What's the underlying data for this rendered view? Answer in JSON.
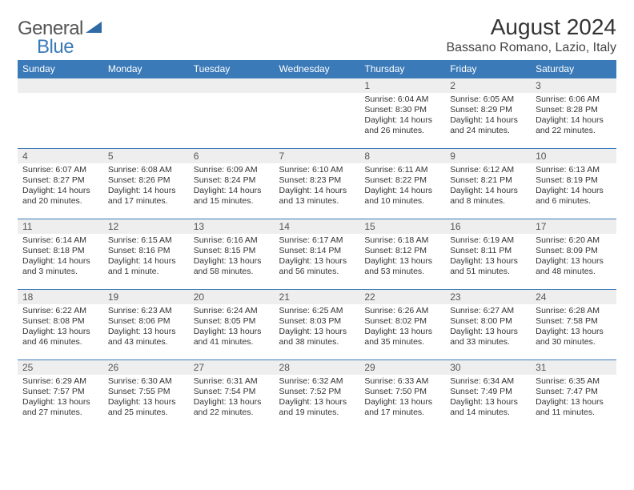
{
  "logo": {
    "general": "General",
    "blue": "Blue"
  },
  "title": "August 2024",
  "location": "Bassano Romano, Lazio, Italy",
  "colors": {
    "header_bg": "#3a7ab8",
    "header_text": "#ffffff",
    "daynum_bg": "#eeeeee",
    "border": "#3a7ab8",
    "text": "#333333"
  },
  "weekdays": [
    "Sunday",
    "Monday",
    "Tuesday",
    "Wednesday",
    "Thursday",
    "Friday",
    "Saturday"
  ],
  "weeks": [
    [
      null,
      null,
      null,
      null,
      {
        "n": "1",
        "sr": "Sunrise: 6:04 AM",
        "ss": "Sunset: 8:30 PM",
        "dl": "Daylight: 14 hours and 26 minutes."
      },
      {
        "n": "2",
        "sr": "Sunrise: 6:05 AM",
        "ss": "Sunset: 8:29 PM",
        "dl": "Daylight: 14 hours and 24 minutes."
      },
      {
        "n": "3",
        "sr": "Sunrise: 6:06 AM",
        "ss": "Sunset: 8:28 PM",
        "dl": "Daylight: 14 hours and 22 minutes."
      }
    ],
    [
      {
        "n": "4",
        "sr": "Sunrise: 6:07 AM",
        "ss": "Sunset: 8:27 PM",
        "dl": "Daylight: 14 hours and 20 minutes."
      },
      {
        "n": "5",
        "sr": "Sunrise: 6:08 AM",
        "ss": "Sunset: 8:26 PM",
        "dl": "Daylight: 14 hours and 17 minutes."
      },
      {
        "n": "6",
        "sr": "Sunrise: 6:09 AM",
        "ss": "Sunset: 8:24 PM",
        "dl": "Daylight: 14 hours and 15 minutes."
      },
      {
        "n": "7",
        "sr": "Sunrise: 6:10 AM",
        "ss": "Sunset: 8:23 PM",
        "dl": "Daylight: 14 hours and 13 minutes."
      },
      {
        "n": "8",
        "sr": "Sunrise: 6:11 AM",
        "ss": "Sunset: 8:22 PM",
        "dl": "Daylight: 14 hours and 10 minutes."
      },
      {
        "n": "9",
        "sr": "Sunrise: 6:12 AM",
        "ss": "Sunset: 8:21 PM",
        "dl": "Daylight: 14 hours and 8 minutes."
      },
      {
        "n": "10",
        "sr": "Sunrise: 6:13 AM",
        "ss": "Sunset: 8:19 PM",
        "dl": "Daylight: 14 hours and 6 minutes."
      }
    ],
    [
      {
        "n": "11",
        "sr": "Sunrise: 6:14 AM",
        "ss": "Sunset: 8:18 PM",
        "dl": "Daylight: 14 hours and 3 minutes."
      },
      {
        "n": "12",
        "sr": "Sunrise: 6:15 AM",
        "ss": "Sunset: 8:16 PM",
        "dl": "Daylight: 14 hours and 1 minute."
      },
      {
        "n": "13",
        "sr": "Sunrise: 6:16 AM",
        "ss": "Sunset: 8:15 PM",
        "dl": "Daylight: 13 hours and 58 minutes."
      },
      {
        "n": "14",
        "sr": "Sunrise: 6:17 AM",
        "ss": "Sunset: 8:14 PM",
        "dl": "Daylight: 13 hours and 56 minutes."
      },
      {
        "n": "15",
        "sr": "Sunrise: 6:18 AM",
        "ss": "Sunset: 8:12 PM",
        "dl": "Daylight: 13 hours and 53 minutes."
      },
      {
        "n": "16",
        "sr": "Sunrise: 6:19 AM",
        "ss": "Sunset: 8:11 PM",
        "dl": "Daylight: 13 hours and 51 minutes."
      },
      {
        "n": "17",
        "sr": "Sunrise: 6:20 AM",
        "ss": "Sunset: 8:09 PM",
        "dl": "Daylight: 13 hours and 48 minutes."
      }
    ],
    [
      {
        "n": "18",
        "sr": "Sunrise: 6:22 AM",
        "ss": "Sunset: 8:08 PM",
        "dl": "Daylight: 13 hours and 46 minutes."
      },
      {
        "n": "19",
        "sr": "Sunrise: 6:23 AM",
        "ss": "Sunset: 8:06 PM",
        "dl": "Daylight: 13 hours and 43 minutes."
      },
      {
        "n": "20",
        "sr": "Sunrise: 6:24 AM",
        "ss": "Sunset: 8:05 PM",
        "dl": "Daylight: 13 hours and 41 minutes."
      },
      {
        "n": "21",
        "sr": "Sunrise: 6:25 AM",
        "ss": "Sunset: 8:03 PM",
        "dl": "Daylight: 13 hours and 38 minutes."
      },
      {
        "n": "22",
        "sr": "Sunrise: 6:26 AM",
        "ss": "Sunset: 8:02 PM",
        "dl": "Daylight: 13 hours and 35 minutes."
      },
      {
        "n": "23",
        "sr": "Sunrise: 6:27 AM",
        "ss": "Sunset: 8:00 PM",
        "dl": "Daylight: 13 hours and 33 minutes."
      },
      {
        "n": "24",
        "sr": "Sunrise: 6:28 AM",
        "ss": "Sunset: 7:58 PM",
        "dl": "Daylight: 13 hours and 30 minutes."
      }
    ],
    [
      {
        "n": "25",
        "sr": "Sunrise: 6:29 AM",
        "ss": "Sunset: 7:57 PM",
        "dl": "Daylight: 13 hours and 27 minutes."
      },
      {
        "n": "26",
        "sr": "Sunrise: 6:30 AM",
        "ss": "Sunset: 7:55 PM",
        "dl": "Daylight: 13 hours and 25 minutes."
      },
      {
        "n": "27",
        "sr": "Sunrise: 6:31 AM",
        "ss": "Sunset: 7:54 PM",
        "dl": "Daylight: 13 hours and 22 minutes."
      },
      {
        "n": "28",
        "sr": "Sunrise: 6:32 AM",
        "ss": "Sunset: 7:52 PM",
        "dl": "Daylight: 13 hours and 19 minutes."
      },
      {
        "n": "29",
        "sr": "Sunrise: 6:33 AM",
        "ss": "Sunset: 7:50 PM",
        "dl": "Daylight: 13 hours and 17 minutes."
      },
      {
        "n": "30",
        "sr": "Sunrise: 6:34 AM",
        "ss": "Sunset: 7:49 PM",
        "dl": "Daylight: 13 hours and 14 minutes."
      },
      {
        "n": "31",
        "sr": "Sunrise: 6:35 AM",
        "ss": "Sunset: 7:47 PM",
        "dl": "Daylight: 13 hours and 11 minutes."
      }
    ]
  ]
}
